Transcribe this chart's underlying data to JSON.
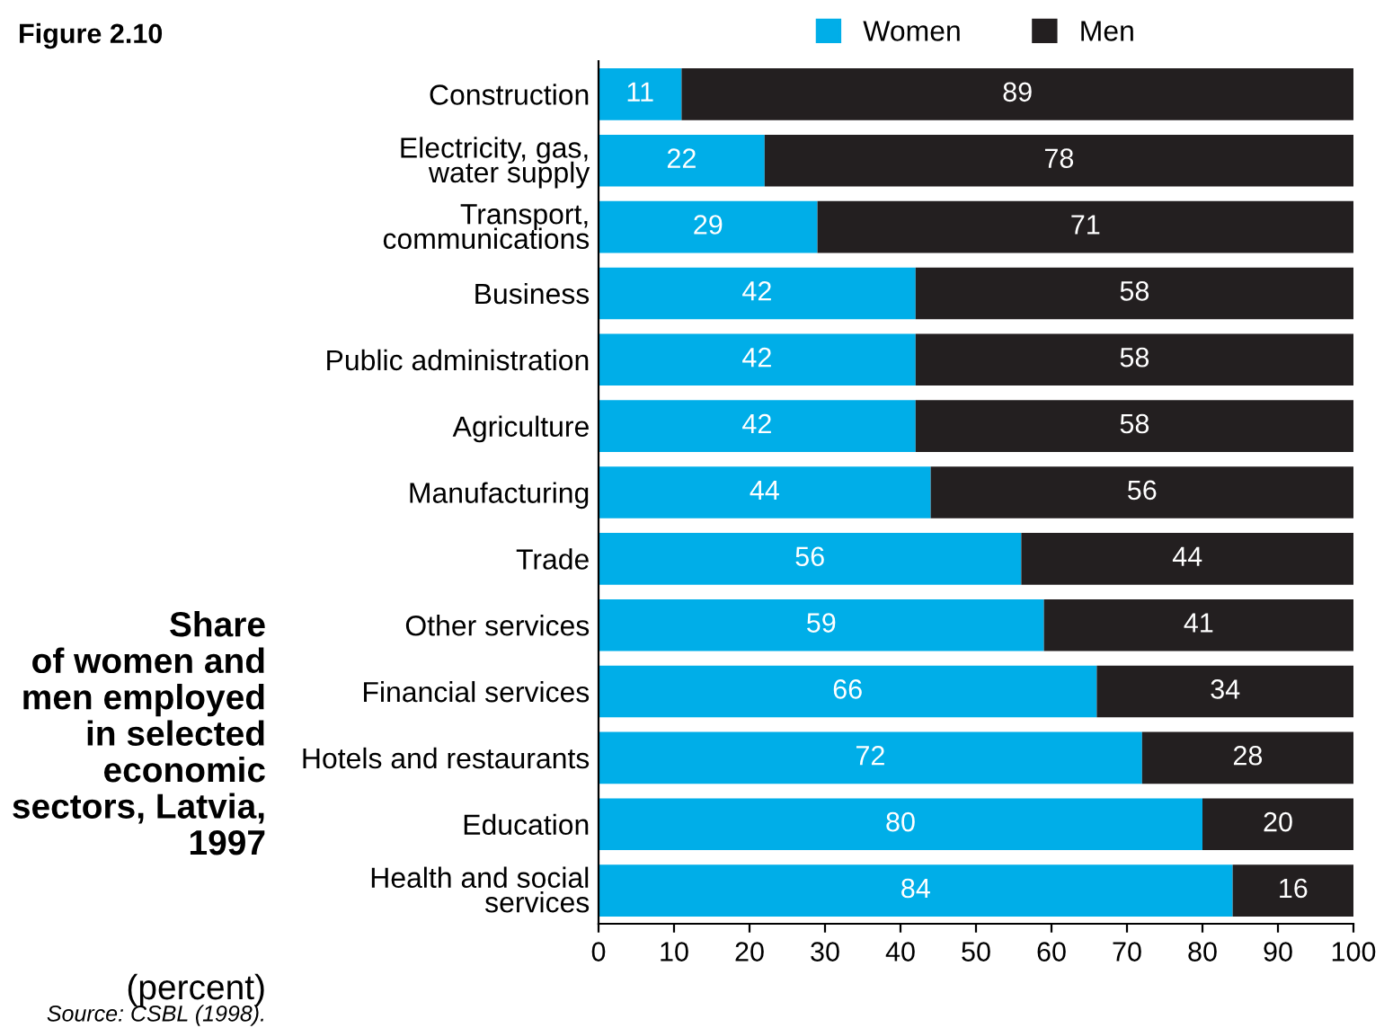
{
  "chart_data": {
    "type": "bar",
    "orientation": "horizontal",
    "stacked": true,
    "title": "Share\nof women and\nmen employed\nin selected\neconomic\nsectors, Latvia,\n1997",
    "subtitle": "(percent)",
    "annotations": [
      "Figure 2.10",
      "Source: CSBL (1998)."
    ],
    "categories": [
      "Construction",
      "Electricity, gas,\nwater supply",
      "Transport,\ncommunications",
      "Business",
      "Public administration",
      "Agriculture",
      "Manufacturing",
      "Trade",
      "Other services",
      "Financial services",
      "Hotels and restaurants",
      "Education",
      "Health and social\nservices"
    ],
    "series": [
      {
        "name": "Women",
        "color": "#00aee8",
        "values": [
          11,
          22,
          29,
          42,
          42,
          42,
          44,
          56,
          59,
          66,
          72,
          80,
          84
        ]
      },
      {
        "name": "Men",
        "color": "#231f20",
        "values": [
          89,
          78,
          71,
          58,
          58,
          58,
          56,
          44,
          41,
          34,
          28,
          20,
          16
        ]
      }
    ],
    "xlim": [
      0,
      100
    ],
    "xticks": [
      0,
      10,
      20,
      30,
      40,
      50,
      60,
      70,
      80,
      90,
      100
    ],
    "data_labels": true,
    "legend": "top",
    "grid": false
  }
}
